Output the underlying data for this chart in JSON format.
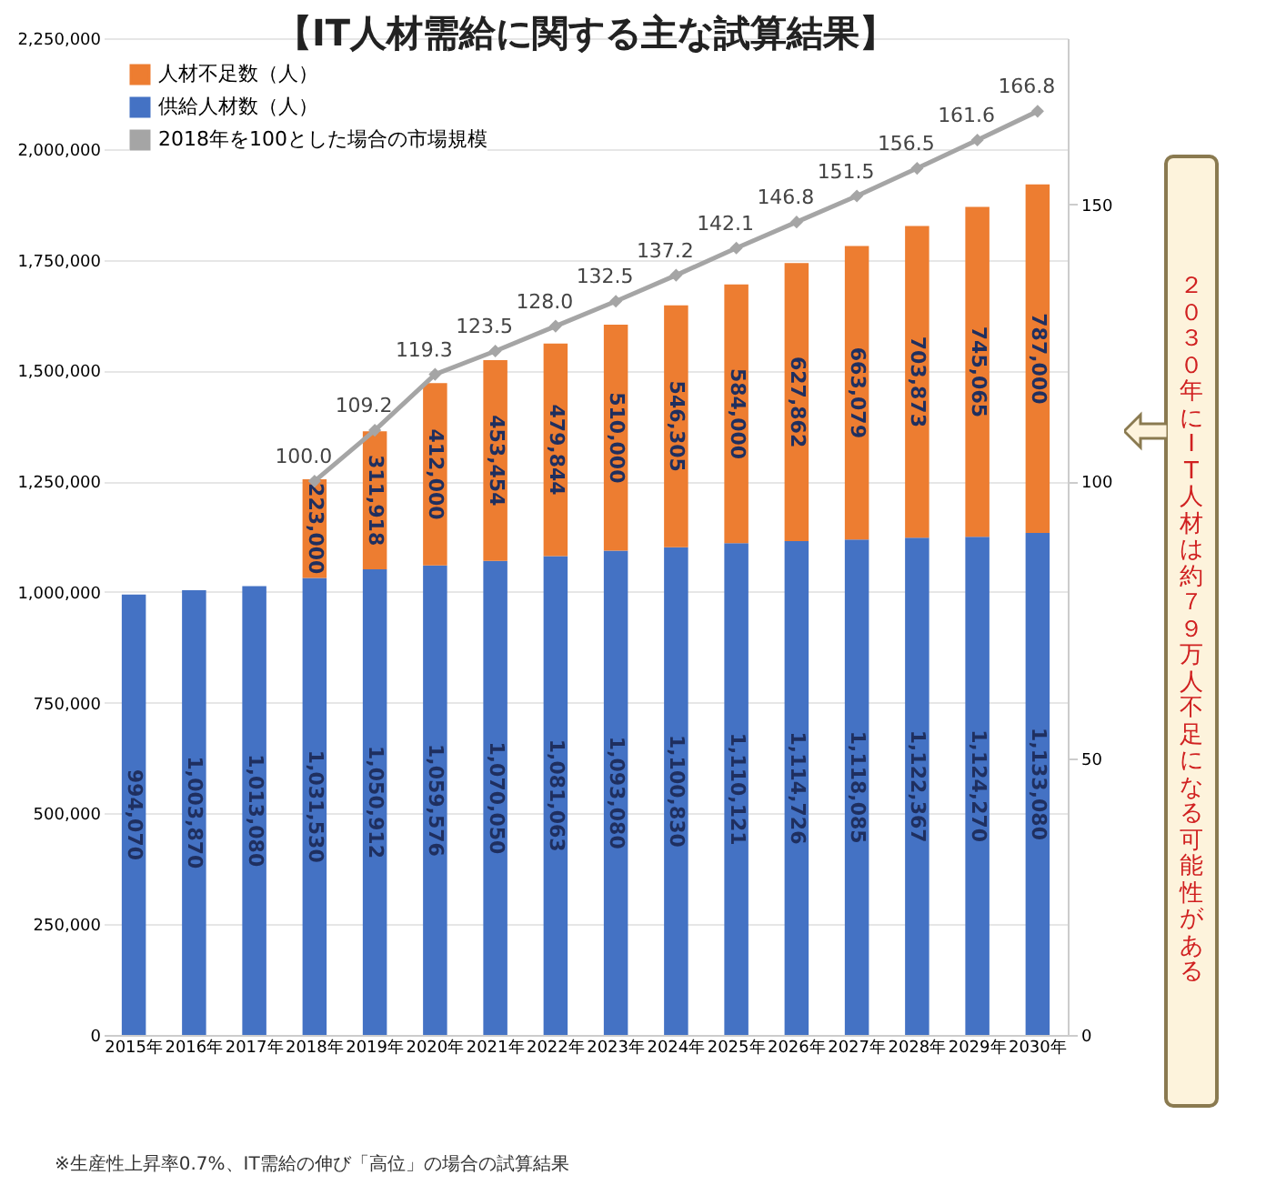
{
  "chart_data": {
    "type": "bar",
    "title": "【IT人材需給に関する主な試算結果】",
    "categories": [
      "2015年",
      "2016年",
      "2017年",
      "2018年",
      "2019年",
      "2020年",
      "2021年",
      "2022年",
      "2023年",
      "2024年",
      "2025年",
      "2026年",
      "2027年",
      "2028年",
      "2029年",
      "2030年"
    ],
    "stacked": true,
    "series": [
      {
        "name": "供給人材数（人）",
        "color": "#4472c4",
        "values": [
          994070,
          1003870,
          1013080,
          1031530,
          1050912,
          1059576,
          1070050,
          1081063,
          1093080,
          1100830,
          1110121,
          1114726,
          1118085,
          1122367,
          1124270,
          1133080
        ],
        "value_labels": [
          "994,070",
          "1,003,870",
          "1,013,080",
          "1,031,530",
          "1,050,912",
          "1,059,576",
          "1,070,050",
          "1,081,063",
          "1,093,080",
          "1,100,830",
          "1,110,121",
          "1,114,726",
          "1,118,085",
          "1,122,367",
          "1,124,270",
          "1,133,080"
        ]
      },
      {
        "name": "人材不足数（人）",
        "color": "#ed7d31",
        "values": [
          null,
          null,
          null,
          223000,
          311918,
          412000,
          453454,
          479844,
          510000,
          546305,
          584000,
          627862,
          663079,
          703873,
          745065,
          787000
        ],
        "value_labels": [
          null,
          null,
          null,
          "223,000",
          "311,918",
          "412,000",
          "453,454",
          "479,844",
          "510,000",
          "546,305",
          "584,000",
          "627,862",
          "663,079",
          "703,873",
          "745,065",
          "787,000"
        ]
      },
      {
        "name": "2018年を100とした場合の市場規模",
        "type": "line",
        "axis": "y2",
        "color": "#a5a5a5",
        "marker": "diamond",
        "values": [
          null,
          null,
          null,
          100.0,
          109.2,
          119.3,
          123.5,
          128.0,
          132.5,
          137.2,
          142.1,
          146.8,
          151.5,
          156.5,
          161.6,
          166.8
        ],
        "value_labels": [
          null,
          null,
          null,
          "100.0",
          "109.2",
          "119.3",
          "123.5",
          "128.0",
          "132.5",
          "137.2",
          "142.1",
          "146.8",
          "151.5",
          "156.5",
          "161.6",
          "166.8"
        ]
      }
    ],
    "ylim": [
      0,
      2250000
    ],
    "yticks": [
      0,
      {
        "value": 250000,
        "label": "250,000"
      },
      {
        "value": 500000,
        "label": "500,000"
      },
      {
        "value": 750000,
        "label": "750,000"
      },
      {
        "value": 1000000,
        "label": "1,000,000"
      },
      {
        "value": 1250000,
        "label": "1,250,000"
      },
      {
        "value": 1500000,
        "label": "1,500,000"
      },
      {
        "value": 1750000,
        "label": "1,750,000"
      },
      {
        "value": 2000000,
        "label": "2,000,000"
      },
      {
        "value": 2250000,
        "label": "2,250,000"
      }
    ],
    "y2lim": [
      0,
      180
    ],
    "y2ticks": [
      0,
      50,
      100,
      150
    ],
    "grid": "y",
    "legend": "top left",
    "annotations": [
      "２０３０年にIT人材は約７９万人不足になる可能性がある",
      "※生産性上昇率0.7%、IT需給の伸び「高位」の場合の試算結果"
    ]
  }
}
